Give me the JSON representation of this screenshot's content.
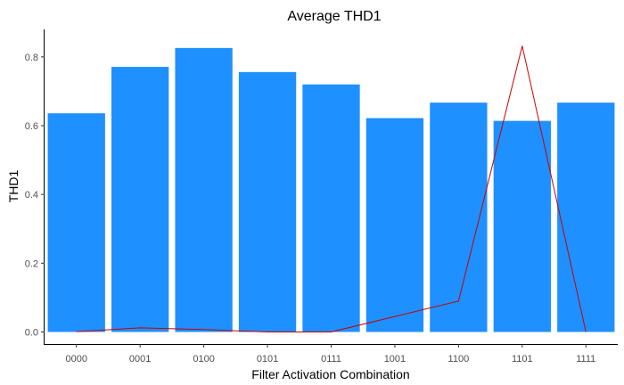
{
  "chart_data": {
    "type": "bar",
    "title": "Average THD1",
    "xlabel": "Filter Activation Combination",
    "ylabel": "THD1",
    "categories": [
      "0000",
      "0001",
      "0100",
      "0101",
      "0111",
      "1001",
      "1100",
      "1101",
      "1111"
    ],
    "series": [
      {
        "name": "Average THD1",
        "kind": "bar",
        "color": "#1e90ff",
        "values": [
          0.636,
          0.771,
          0.826,
          0.756,
          0.72,
          0.622,
          0.667,
          0.614,
          0.667
        ]
      },
      {
        "name": "Overlay line",
        "kind": "line",
        "color": "#cc0000",
        "values": [
          0.001,
          0.012,
          0.007,
          0.0,
          0.0,
          0.045,
          0.09,
          0.832,
          0.0
        ]
      }
    ],
    "ylim": [
      -0.035,
      0.88
    ],
    "yticks": [
      "0.0",
      "0.2",
      "0.4",
      "0.6",
      "0.8"
    ],
    "ytick_values": [
      0.0,
      0.2,
      0.4,
      0.6,
      0.8
    ],
    "grid": false,
    "legend": "none"
  }
}
